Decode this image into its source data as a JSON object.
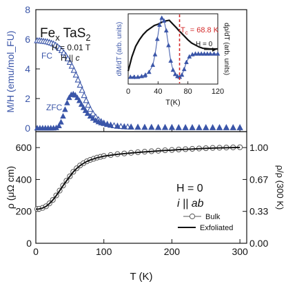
{
  "colors": {
    "blue": "#3a55a8",
    "black": "#111111",
    "red": "#d42a2a",
    "open_marker": "#555555"
  },
  "chart_data": [
    {
      "panel": "top-main",
      "type": "scatter",
      "title": "",
      "ylabel": "M/H (emu/mol_FU)",
      "ylim": [
        0,
        8
      ],
      "y_ticks": [
        "0",
        "2",
        "4",
        "6",
        "8"
      ],
      "xlim": [
        0,
        310
      ],
      "shared_x_with": "bottom",
      "annotations": {
        "formula_prefix": "Fe",
        "formula_sub1": "x",
        "formula_mid": " TaS",
        "formula_sub2": "2",
        "field": "H = 0.01 T",
        "direction_text": "H || ",
        "direction_axis": "c",
        "fc": "FC",
        "zfc": "ZFC"
      },
      "series": [
        {
          "name": "FC",
          "marker": "open-triangle",
          "x": [
            2,
            5,
            8,
            11,
            14,
            17,
            20,
            23,
            26,
            29,
            32,
            35,
            38,
            41,
            44,
            47,
            50,
            53,
            56,
            59,
            62,
            65,
            68,
            71,
            74,
            77,
            80,
            84,
            88,
            92,
            96,
            100,
            105,
            110,
            115,
            120,
            125,
            130,
            135,
            140,
            150,
            160,
            170,
            180,
            190,
            200,
            210,
            220,
            230,
            240,
            250,
            260,
            270,
            280,
            290,
            300
          ],
          "values": [
            5.9,
            5.9,
            5.88,
            5.86,
            5.84,
            5.82,
            5.78,
            5.73,
            5.68,
            5.6,
            5.5,
            5.38,
            5.24,
            5.08,
            4.9,
            4.68,
            4.44,
            4.18,
            3.9,
            3.58,
            3.25,
            2.9,
            2.55,
            2.2,
            1.86,
            1.55,
            1.27,
            0.98,
            0.75,
            0.57,
            0.44,
            0.34,
            0.26,
            0.2,
            0.16,
            0.13,
            0.11,
            0.09,
            0.08,
            0.07,
            0.06,
            0.05,
            0.05,
            0.04,
            0.04,
            0.04,
            0.03,
            0.03,
            0.03,
            0.03,
            0.03,
            0.03,
            0.03,
            0.03,
            0.03,
            0.03
          ]
        },
        {
          "name": "ZFC",
          "marker": "filled-triangle",
          "x": [
            2,
            6,
            10,
            14,
            18,
            22,
            26,
            30,
            34,
            37,
            40,
            43,
            46,
            49,
            52,
            55,
            58,
            61,
            64,
            67,
            70,
            73,
            76,
            80,
            84,
            88,
            92,
            96,
            100,
            105,
            110,
            120,
            130,
            140,
            150,
            160,
            170,
            180,
            190,
            200,
            210,
            220,
            230,
            240,
            250,
            260,
            270,
            280,
            290,
            300
          ],
          "values": [
            0.0,
            0.0,
            0.0,
            0.0,
            0.0,
            0.0,
            0.0,
            0.02,
            0.15,
            0.4,
            0.8,
            1.25,
            1.7,
            2.05,
            2.25,
            2.3,
            2.22,
            2.05,
            1.85,
            1.6,
            1.38,
            1.18,
            0.98,
            0.8,
            0.65,
            0.52,
            0.42,
            0.35,
            0.3,
            0.24,
            0.2,
            0.14,
            0.1,
            0.08,
            0.07,
            0.06,
            0.05,
            0.05,
            0.04,
            0.04,
            0.04,
            0.03,
            0.03,
            0.03,
            0.03,
            0.03,
            0.03,
            0.03,
            0.03,
            0.03
          ]
        }
      ]
    },
    {
      "panel": "inset",
      "type": "line",
      "xlabel": "T(K)",
      "xlim": [
        0,
        120
      ],
      "x_ticks": [
        "0",
        "40",
        "80",
        "120"
      ],
      "ylabel_left": "dM/dT (arb. units)",
      "ylabel_right": "dρ/dT (arb. units)",
      "tc_prefix": "T",
      "tc_sub": "c",
      "tc_value": " = 68.8 K",
      "h0": "H = 0",
      "tc": 68.8,
      "series": [
        {
          "name": "dρ/dT",
          "marker": "line",
          "x": [
            0,
            5,
            10,
            15,
            20,
            25,
            30,
            35,
            40,
            45,
            50,
            55,
            60,
            65,
            68.8,
            70,
            75,
            80,
            85,
            90,
            95,
            100,
            110,
            120
          ],
          "values": [
            0.2,
            0.42,
            0.58,
            0.68,
            0.76,
            0.82,
            0.86,
            0.9,
            0.92,
            0.95,
            0.97,
            0.98,
            0.92,
            0.86,
            0.81,
            0.8,
            0.74,
            0.68,
            0.63,
            0.6,
            0.57,
            0.55,
            0.54,
            0.54
          ]
        },
        {
          "name": "dM/dT",
          "marker": "filled-triangle",
          "x": [
            3,
            8,
            13,
            18,
            23,
            28,
            33,
            36,
            39,
            42,
            45,
            48,
            51,
            54,
            57,
            60,
            63,
            66,
            69,
            72,
            75,
            78,
            82,
            86,
            90,
            94,
            98,
            102,
            106,
            110,
            115,
            120
          ],
          "values": [
            0.1,
            0.1,
            0.1,
            0.11,
            0.13,
            0.17,
            0.27,
            0.42,
            0.64,
            0.84,
            0.94,
            0.9,
            0.76,
            0.55,
            0.33,
            0.2,
            0.14,
            0.11,
            0.1,
            0.13,
            0.21,
            0.31,
            0.39,
            0.42,
            0.43,
            0.43,
            0.43,
            0.43,
            0.43,
            0.43,
            0.43,
            0.43
          ]
        }
      ]
    },
    {
      "panel": "bottom-main",
      "type": "line",
      "xlabel": "T (K)",
      "xlim": [
        0,
        310
      ],
      "x_ticks": [
        "0",
        "100",
        "200",
        "300"
      ],
      "ylabel": "ρ (μΩ cm)",
      "ylim": [
        0,
        700
      ],
      "y_ticks": [
        "0",
        "200",
        "400",
        "600"
      ],
      "ylabel_right": "ρ/ρ (300 K)",
      "y2lim": [
        0,
        1.1667
      ],
      "y2_ticks": [
        "0.00",
        "0.33",
        "0.67",
        "1.00"
      ],
      "annotations": {
        "h0": "H = 0",
        "current_prefix": "i || ",
        "current_axis": "ab"
      },
      "series": [
        {
          "name": "Bulk",
          "marker": "open-circle",
          "x": [
            2,
            5,
            10,
            15,
            20,
            25,
            30,
            35,
            40,
            45,
            50,
            55,
            60,
            65,
            70,
            75,
            80,
            85,
            90,
            95,
            100,
            110,
            120,
            130,
            140,
            150,
            160,
            170,
            180,
            190,
            200,
            210,
            220,
            230,
            240,
            250,
            260,
            270,
            280,
            290,
            300
          ],
          "values": [
            215,
            216,
            222,
            232,
            250,
            272,
            300,
            330,
            362,
            392,
            420,
            448,
            470,
            488,
            502,
            514,
            523,
            530,
            537,
            542,
            547,
            553,
            559,
            563,
            567,
            571,
            574,
            577,
            580,
            583,
            585,
            588,
            590,
            592,
            594,
            596,
            598,
            599,
            600,
            601,
            602
          ]
        },
        {
          "name": "Exfoliated",
          "marker": "line",
          "x": [
            0,
            5,
            10,
            15,
            20,
            25,
            30,
            35,
            40,
            45,
            50,
            55,
            60,
            65,
            70,
            75,
            80,
            85,
            90,
            95,
            100,
            110,
            120,
            130,
            140,
            150,
            160,
            170,
            180,
            190,
            200,
            210,
            220,
            230,
            240,
            250,
            260,
            270,
            280,
            290,
            300
          ],
          "values": [
            214,
            215,
            221,
            231,
            249,
            271,
            299,
            329,
            361,
            391,
            419,
            447,
            469,
            487,
            501,
            513,
            522,
            529,
            536,
            541,
            546,
            552,
            558,
            562,
            566,
            570,
            573,
            576,
            579,
            582,
            584,
            587,
            589,
            591,
            593,
            595,
            597,
            598,
            599,
            600,
            601
          ]
        }
      ]
    }
  ]
}
